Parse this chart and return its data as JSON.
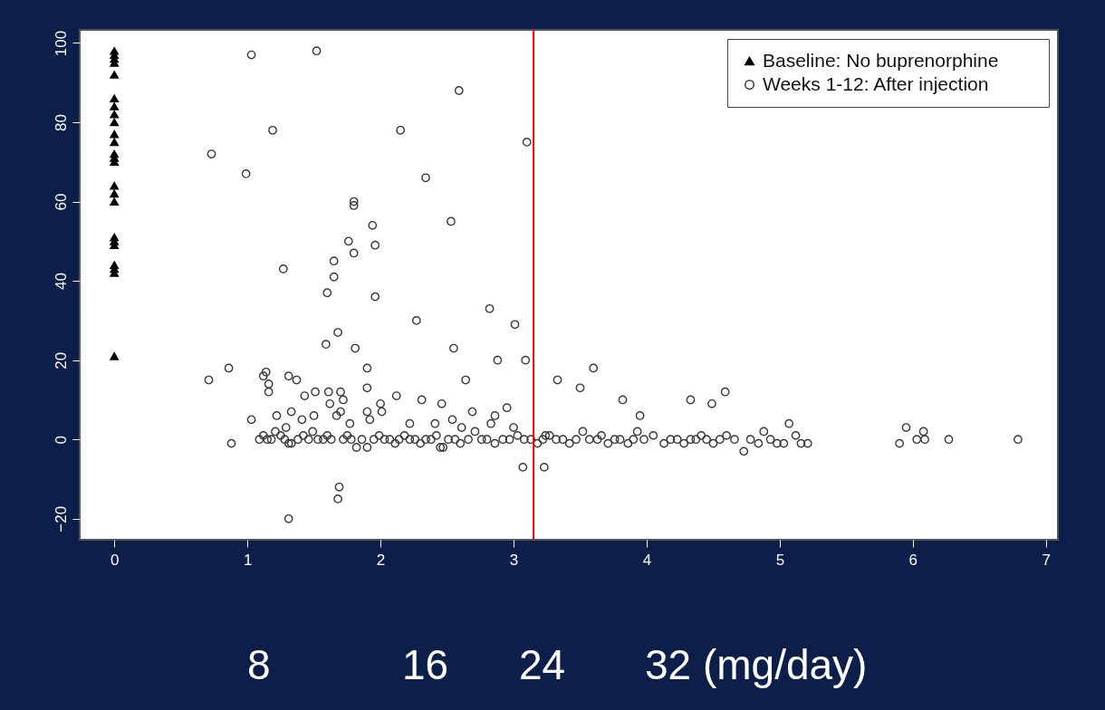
{
  "chart_data": {
    "type": "scatter",
    "xlim": [
      -0.26,
      7.09
    ],
    "xticks": [
      0,
      1,
      2,
      3,
      4,
      5,
      6,
      7
    ],
    "ylim": [
      -25.3,
      103.3
    ],
    "yticks": [
      -20,
      0,
      20,
      40,
      60,
      80,
      100
    ],
    "annotations": [
      "8",
      "16",
      "24",
      "32 (mg/day)"
    ],
    "grid": false,
    "legend": "top right",
    "ref_lines": [
      {
        "axis": "x",
        "value": 3.15,
        "color": "#ff0000"
      }
    ],
    "series": [
      {
        "name": "Baseline:        No buprenorphine",
        "color": "#000000",
        "marker": "triangle",
        "x": [
          0,
          0,
          0,
          0,
          0,
          0,
          0,
          0,
          0,
          0,
          0,
          0,
          0,
          0,
          0,
          0,
          0,
          0,
          0,
          0,
          0,
          0,
          0,
          0
        ],
        "values": [
          98,
          97,
          96,
          95,
          92,
          86,
          84,
          82,
          80,
          77,
          75,
          72,
          71,
          70,
          64,
          62,
          60,
          51,
          50,
          49,
          44,
          43,
          42,
          21
        ]
      },
      {
        "name": "Weeks 1-12: After injection",
        "color": "#3a3a3a",
        "marker": "circle",
        "x": [
          1.09,
          1.12,
          1.15,
          1.18,
          1.21,
          1.25,
          1.28,
          1.33,
          1.38,
          1.42,
          1.46,
          1.49,
          1.53,
          1.57,
          1.6,
          1.63,
          1.72,
          1.75,
          1.78,
          1.82,
          1.86,
          1.95,
          1.99,
          2.03,
          2.07,
          2.11,
          2.14,
          2.18,
          2.22,
          2.26,
          2.3,
          2.34,
          2.38,
          2.42,
          2.47,
          2.51,
          2.56,
          2.6,
          2.66,
          2.71,
          2.76,
          2.8,
          2.86,
          2.92,
          2.97,
          3.03,
          3.08,
          3.13,
          3.18,
          3.22,
          3.27,
          3.32,
          3.37,
          3.42,
          3.47,
          3.52,
          3.57,
          3.63,
          3.66,
          3.71,
          3.76,
          3.8,
          3.86,
          3.9,
          3.93,
          3.98,
          4.05,
          4.13,
          4.18,
          4.23,
          4.28,
          4.33,
          4.37,
          4.41,
          4.45,
          4.5,
          4.55,
          4.6,
          4.66,
          4.78,
          4.84,
          4.88,
          4.93,
          4.98,
          5.03,
          5.07,
          5.12,
          5.16,
          5.21,
          5.9,
          5.95,
          6.03,
          6.08,
          6.09,
          6.27,
          6.79,
          1.03,
          1.52,
          2.59,
          3.1,
          0.73,
          1.19,
          2.15,
          2.34,
          0.99,
          1.8,
          1.8,
          1.94,
          2.53,
          1.76,
          1.96,
          1.65,
          1.8,
          1.27,
          1.65,
          1.6,
          1.96,
          2.27,
          2.82,
          3.01,
          1.59,
          1.68,
          1.81,
          2.55,
          2.88,
          3.09,
          0.71,
          0.86,
          1.9,
          2.64,
          3.33,
          3.6,
          3.5,
          3.82,
          3.95,
          4.33,
          4.49,
          4.59,
          1.12,
          1.14,
          1.16,
          1.16,
          1.31,
          1.37,
          1.43,
          1.51,
          1.61,
          1.62,
          1.7,
          1.72,
          1.7,
          1.9,
          1.9,
          2.0,
          2.01,
          2.12,
          2.31,
          2.46,
          2.54,
          2.69,
          2.86,
          2.95,
          1.03,
          1.22,
          1.29,
          1.33,
          1.41,
          1.5,
          1.67,
          1.77,
          1.92,
          2.22,
          2.41,
          2.61,
          2.83,
          3.0,
          3.24,
          0.88,
          1.31,
          1.31,
          1.68,
          1.69,
          3.07,
          3.23,
          1.9,
          2.45,
          4.73
        ],
        "values": [
          0,
          1,
          0,
          0,
          2,
          1,
          0,
          -1,
          0,
          1,
          0,
          2,
          0,
          0,
          1,
          0,
          0,
          1,
          0,
          -2,
          0,
          0,
          1,
          0,
          0,
          -1,
          0,
          1,
          0,
          0,
          -1,
          0,
          0,
          1,
          -2,
          0,
          0,
          -1,
          0,
          2,
          0,
          0,
          -1,
          0,
          0,
          1,
          0,
          0,
          -1,
          0,
          1,
          0,
          0,
          -1,
          0,
          2,
          0,
          0,
          1,
          -1,
          0,
          0,
          -1,
          0,
          2,
          0,
          1,
          -1,
          0,
          0,
          -1,
          0,
          0,
          1,
          0,
          -1,
          0,
          1,
          0,
          0,
          -1,
          2,
          0,
          -1,
          -1,
          4,
          1,
          -1,
          -1,
          -1,
          3,
          0,
          2,
          0,
          0,
          0,
          97,
          98,
          88,
          75,
          72,
          78,
          78,
          66,
          67,
          60,
          59,
          54,
          55,
          50,
          49,
          45,
          47,
          43,
          41,
          37,
          36,
          30,
          33,
          29,
          24,
          27,
          23,
          23,
          20,
          20,
          15,
          18,
          18,
          15,
          15,
          18,
          13,
          10,
          6,
          10,
          9,
          12,
          16,
          17,
          14,
          12,
          16,
          15,
          11,
          12,
          12,
          9,
          12,
          10,
          7,
          7,
          13,
          9,
          7,
          11,
          10,
          9,
          5,
          7,
          6,
          8,
          5,
          6,
          3,
          7,
          5,
          6,
          6,
          4,
          5,
          4,
          4,
          3,
          4,
          3,
          1,
          -1,
          -1,
          -20,
          -15,
          -12,
          -7,
          -7,
          -2,
          -2,
          -3
        ]
      }
    ]
  }
}
